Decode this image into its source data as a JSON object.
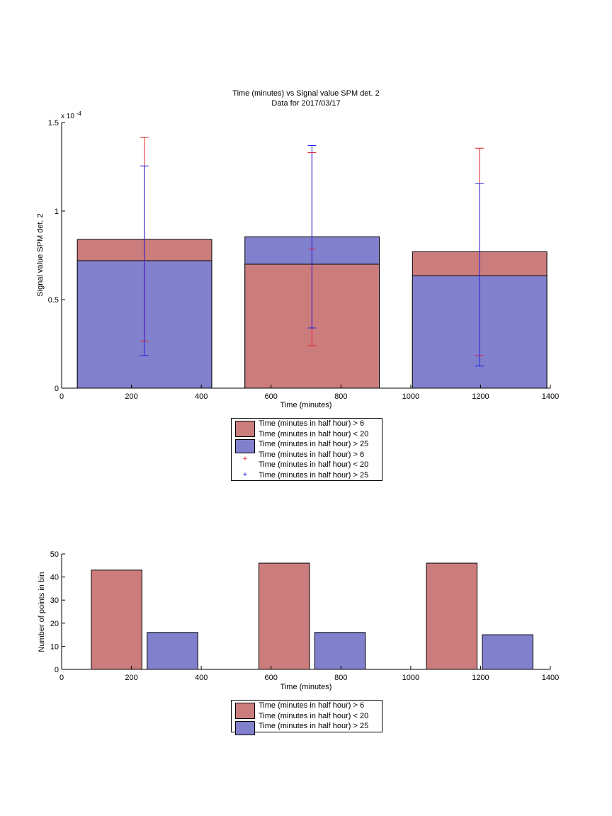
{
  "chart_data": [
    {
      "type": "bar",
      "title": "Time (minutes) vs Signal value SPM det. 2",
      "subtitle": "Data for 2017/03/17",
      "xlabel": "Time (minutes)",
      "ylabel": "Signal value SPM det. 2",
      "exponent_label": "x 10",
      "exponent_power": "-4",
      "xlim": [
        0,
        1400
      ],
      "ylim": [
        0,
        1.5
      ],
      "xticks": [
        "0",
        "200",
        "400",
        "600",
        "800",
        "1000",
        "1200",
        "1400"
      ],
      "yticks": [
        "0",
        "0.5",
        "1",
        "1.5"
      ],
      "bars": [
        {
          "x_start": 45,
          "x_end": 430,
          "series": [
            {
              "value": 0.84
            },
            {
              "value": 0.72
            }
          ]
        },
        {
          "x_start": 525,
          "x_end": 910,
          "series": [
            {
              "value": 0.7
            },
            {
              "value": 0.855
            }
          ]
        },
        {
          "x_start": 1005,
          "x_end": 1390,
          "series": [
            {
              "value": 0.77
            },
            {
              "value": 0.635
            }
          ]
        }
      ],
      "errorbars": [
        {
          "x": 237,
          "lower": 0.265,
          "upper": 1.415,
          "series": 0
        },
        {
          "x": 237,
          "lower": 0.185,
          "upper": 1.255,
          "series": 1
        },
        {
          "x": 717,
          "lower": 0.24,
          "upper": 1.33,
          "series": 0
        },
        {
          "x": 717,
          "lower": 0.34,
          "upper": 1.37,
          "series": 1
        },
        {
          "x": 1197,
          "lower": 0.185,
          "upper": 1.355,
          "series": 0
        },
        {
          "x": 1197,
          "lower": 0.125,
          "upper": 1.155,
          "series": 1
        }
      ],
      "errorbar_markers": [
        {
          "x": 717,
          "value": 0.785,
          "series": 0
        }
      ],
      "colors": {
        "series0": "#cb7c7c",
        "series1": "#8080cc",
        "err0": "#e8202a",
        "err1": "#2525e6"
      },
      "legend": [
        {
          "kind": "bar",
          "series": 0,
          "lines": [
            "Time (minutes in half hour) > 6",
            "Time (minutes in half hour) < 20"
          ]
        },
        {
          "kind": "bar",
          "series": 1,
          "lines": [
            "Time (minutes in half hour) > 25"
          ]
        },
        {
          "kind": "err",
          "series": 0,
          "lines": [
            "Time (minutes in half hour) > 6",
            "Time (minutes in half hour) < 20"
          ]
        },
        {
          "kind": "err",
          "series": 1,
          "lines": [
            "Time (minutes in half hour) > 25"
          ]
        }
      ]
    },
    {
      "type": "bar",
      "xlabel": "Time (minutes)",
      "ylabel": "Number of points in bin",
      "xlim": [
        0,
        1400
      ],
      "ylim": [
        0,
        50
      ],
      "xticks": [
        "0",
        "200",
        "400",
        "600",
        "800",
        "1000",
        "1200",
        "1400"
      ],
      "yticks": [
        "0",
        "10",
        "20",
        "30",
        "40",
        "50"
      ],
      "bars": [
        {
          "x_start": 85,
          "x_end": 230,
          "value": 43,
          "series": 0
        },
        {
          "x_start": 245,
          "x_end": 390,
          "value": 16,
          "series": 1
        },
        {
          "x_start": 565,
          "x_end": 710,
          "value": 46,
          "series": 0
        },
        {
          "x_start": 725,
          "x_end": 870,
          "value": 16,
          "series": 1
        },
        {
          "x_start": 1045,
          "x_end": 1190,
          "value": 46,
          "series": 0
        },
        {
          "x_start": 1205,
          "x_end": 1350,
          "value": 15,
          "series": 1
        }
      ],
      "colors": {
        "series0": "#cb7c7c",
        "series1": "#8080cc"
      },
      "legend": [
        {
          "kind": "bar",
          "series": 0,
          "lines": [
            "Time (minutes in half hour) > 6",
            "Time (minutes in half hour) < 20"
          ]
        },
        {
          "kind": "bar",
          "series": 1,
          "lines": [
            "Time (minutes in half hour) > 25"
          ]
        }
      ]
    }
  ]
}
